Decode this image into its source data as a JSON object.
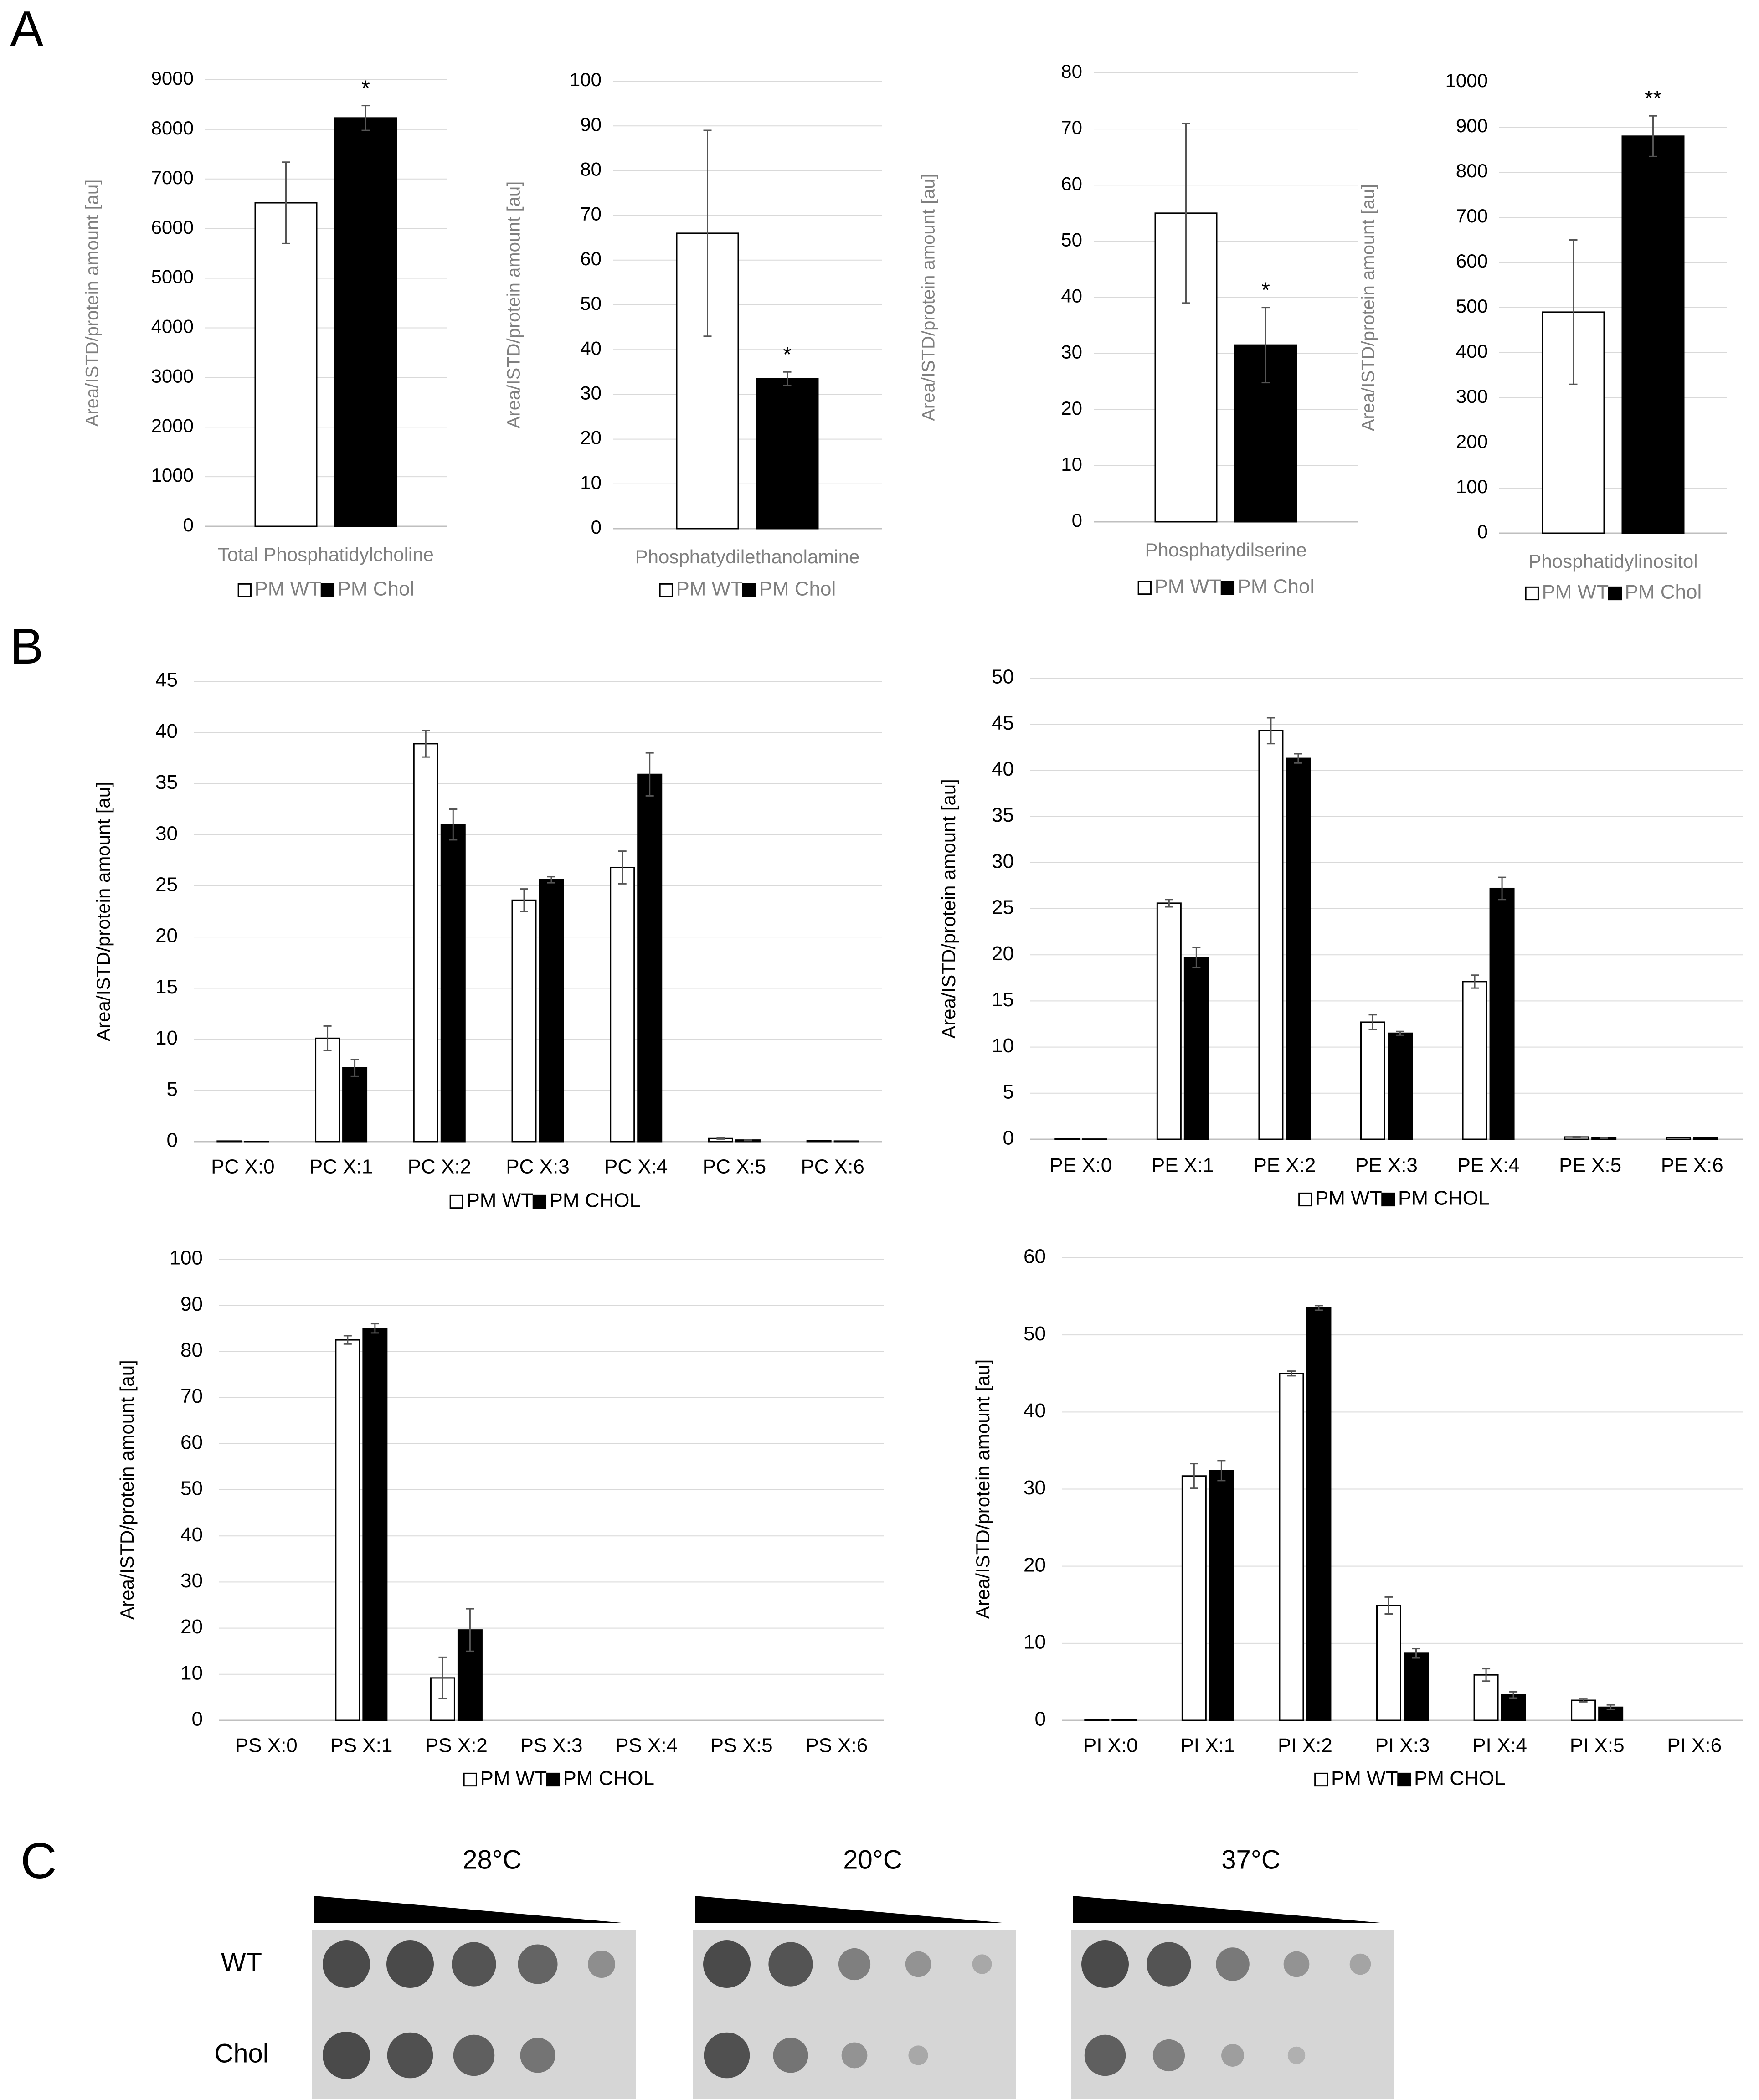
{
  "panel_labels": {
    "a": "A",
    "b": "B",
    "c": "C"
  },
  "colors": {
    "wt_fill": "#ffffff",
    "chol_fill": "#000000",
    "axis_text_a": "#7f7f7f",
    "axis_text_b": "#000000",
    "grid": "#d9d9d9",
    "plate": "#d6d6d6",
    "colony": "#4a4a4a"
  },
  "chart_data": [
    {
      "id": "a1",
      "type": "bar",
      "title": "",
      "xlabel": "Total Phosphatidylcholine",
      "ylabel": "Area/ISTD/protein amount [au]",
      "ylim": [
        0,
        9000
      ],
      "yticks": [
        0,
        1000,
        2000,
        3000,
        4000,
        5000,
        6000,
        7000,
        8000,
        9000
      ],
      "series": [
        {
          "name": "PM WT",
          "values": [
            6520
          ],
          "errors": [
            820
          ]
        },
        {
          "name": "PM Chol",
          "values": [
            8230
          ],
          "errors": [
            250
          ]
        }
      ],
      "annotations": [
        {
          "series": 1,
          "text": "*"
        }
      ],
      "legend": [
        "PM WT",
        "PM Chol"
      ]
    },
    {
      "id": "a2",
      "type": "bar",
      "title": "",
      "xlabel": "Phosphatydilethanolamine",
      "ylabel": "Area/ISTD/protein amount [au]",
      "ylim": [
        0,
        100
      ],
      "yticks": [
        0,
        10,
        20,
        30,
        40,
        50,
        60,
        70,
        80,
        90,
        100
      ],
      "series": [
        {
          "name": "PM WT",
          "values": [
            66
          ],
          "errors": [
            23
          ]
        },
        {
          "name": "PM Chol",
          "values": [
            33.5
          ],
          "errors": [
            1.5
          ]
        }
      ],
      "annotations": [
        {
          "series": 1,
          "text": "*"
        }
      ],
      "legend": [
        "PM WT",
        "PM Chol"
      ]
    },
    {
      "id": "a3",
      "type": "bar",
      "title": "",
      "xlabel": "Phosphatydilserine",
      "ylabel": "Area/ISTD/protein amount [au]",
      "ylim": [
        0,
        80
      ],
      "yticks": [
        0,
        10,
        20,
        30,
        40,
        50,
        60,
        70,
        80
      ],
      "series": [
        {
          "name": "PM WT",
          "values": [
            55
          ],
          "errors": [
            16
          ]
        },
        {
          "name": "PM Chol",
          "values": [
            31.5
          ],
          "errors": [
            6.7
          ]
        }
      ],
      "annotations": [
        {
          "series": 1,
          "text": "*"
        }
      ],
      "legend": [
        "PM WT",
        "PM Chol"
      ]
    },
    {
      "id": "a4",
      "type": "bar",
      "title": "",
      "xlabel": "Phosphatidylinositol",
      "ylabel": "Area/ISTD/protein amount [au]",
      "ylim": [
        0,
        1000
      ],
      "yticks": [
        0,
        100,
        200,
        300,
        400,
        500,
        600,
        700,
        800,
        900,
        1000
      ],
      "series": [
        {
          "name": "PM WT",
          "values": [
            490
          ],
          "errors": [
            160
          ]
        },
        {
          "name": "PM Chol",
          "values": [
            880
          ],
          "errors": [
            45
          ]
        }
      ],
      "annotations": [
        {
          "series": 1,
          "text": "**"
        }
      ],
      "legend": [
        "PM WT",
        "PM Chol"
      ]
    },
    {
      "id": "b1",
      "type": "bar",
      "title": "",
      "xlabel": "",
      "ylabel": "Area/ISTD/protein amount [au]",
      "ylim": [
        0,
        45
      ],
      "yticks": [
        0,
        5,
        10,
        15,
        20,
        25,
        30,
        35,
        40,
        45
      ],
      "categories": [
        "PC X:0",
        "PC X:1",
        "PC X:2",
        "PC X:3",
        "PC X:4",
        "PC X:5",
        "PC X:6"
      ],
      "series": [
        {
          "name": "PM WT",
          "values": [
            0.05,
            10.1,
            38.9,
            23.6,
            26.8,
            0.3,
            0.1
          ],
          "errors": [
            0,
            1.2,
            1.3,
            1.1,
            1.6,
            0.05,
            0
          ]
        },
        {
          "name": "PM CHOL",
          "values": [
            0.02,
            7.2,
            31.0,
            25.6,
            35.9,
            0.15,
            0.05
          ],
          "errors": [
            0,
            0.8,
            1.5,
            0.3,
            2.1,
            0.05,
            0
          ]
        }
      ],
      "legend": [
        "PM WT",
        "PM CHOL"
      ]
    },
    {
      "id": "b2",
      "type": "bar",
      "title": "",
      "xlabel": "",
      "ylabel": "Area/ISTD/protein amount [au]",
      "ylim": [
        0,
        50
      ],
      "yticks": [
        0,
        5,
        10,
        15,
        20,
        25,
        30,
        35,
        40,
        45,
        50
      ],
      "categories": [
        "PE X:0",
        "PE X:1",
        "PE X:2",
        "PE X:3",
        "PE X:4",
        "PE X:5",
        "PE X:6"
      ],
      "series": [
        {
          "name": "PM WT",
          "values": [
            0.05,
            25.6,
            44.3,
            12.7,
            17.1,
            0.25,
            0.2
          ],
          "errors": [
            0,
            0.4,
            1.4,
            0.8,
            0.7,
            0.05,
            0
          ]
        },
        {
          "name": "PM CHOL",
          "values": [
            0.02,
            19.7,
            41.3,
            11.5,
            27.2,
            0.15,
            0.2
          ],
          "errors": [
            0,
            1.1,
            0.5,
            0.2,
            1.2,
            0.05,
            0
          ]
        }
      ],
      "legend": [
        "PM WT",
        "PM CHOL"
      ]
    },
    {
      "id": "b3",
      "type": "bar",
      "title": "",
      "xlabel": "",
      "ylabel": "Area/ISTD/protein amount [au]",
      "ylim": [
        0,
        100
      ],
      "yticks": [
        0,
        10,
        20,
        30,
        40,
        50,
        60,
        70,
        80,
        90,
        100
      ],
      "categories": [
        "PS X:0",
        "PS X:1",
        "PS X:2",
        "PS X:3",
        "PS X:4",
        "PS X:5",
        "PS X:6"
      ],
      "series": [
        {
          "name": "PM WT",
          "values": [
            0,
            82.5,
            9.2,
            0,
            0,
            0,
            0
          ],
          "errors": [
            0,
            0.9,
            4.5,
            0,
            0,
            0,
            0
          ]
        },
        {
          "name": "PM CHOL",
          "values": [
            0,
            85.0,
            19.6,
            0,
            0,
            0,
            0
          ],
          "errors": [
            0,
            1.0,
            4.6,
            0,
            0,
            0,
            0
          ]
        }
      ],
      "legend": [
        "PM WT",
        "PM CHOL"
      ]
    },
    {
      "id": "b4",
      "type": "bar",
      "title": "",
      "xlabel": "",
      "ylabel": "Area/ISTD/protein amount [au]",
      "ylim": [
        0,
        60
      ],
      "yticks": [
        0,
        10,
        20,
        30,
        40,
        50,
        60
      ],
      "categories": [
        "PI X:0",
        "PI X:1",
        "PI X:2",
        "PI X:3",
        "PI X:4",
        "PI X:5",
        "PI X:6"
      ],
      "series": [
        {
          "name": "PM WT",
          "values": [
            0.1,
            31.7,
            45.0,
            14.9,
            5.9,
            2.6,
            0
          ],
          "errors": [
            0,
            1.6,
            0.3,
            1.1,
            0.8,
            0.2,
            0
          ]
        },
        {
          "name": "PM CHOL",
          "values": [
            0.05,
            32.4,
            53.5,
            8.7,
            3.3,
            1.7,
            0
          ],
          "errors": [
            0,
            1.3,
            0.3,
            0.6,
            0.4,
            0.3,
            0
          ]
        }
      ],
      "legend": [
        "PM WT",
        "PM CHOL"
      ]
    }
  ],
  "spot_assay": {
    "temperatures": [
      "28°C",
      "20°C",
      "37°C"
    ],
    "strains": [
      "WT",
      "Chol"
    ],
    "growth": [
      [
        [
          1,
          1,
          0.9,
          0.75,
          0.35
        ],
        [
          1,
          0.95,
          0.8,
          0.6,
          0
        ]
      ],
      [
        [
          1,
          0.9,
          0.5,
          0.3,
          0.1
        ],
        [
          0.95,
          0.6,
          0.3,
          0.1,
          0
        ]
      ],
      [
        [
          1,
          0.9,
          0.55,
          0.3,
          0.15
        ],
        [
          0.8,
          0.5,
          0.2,
          0.03,
          0
        ]
      ]
    ]
  }
}
